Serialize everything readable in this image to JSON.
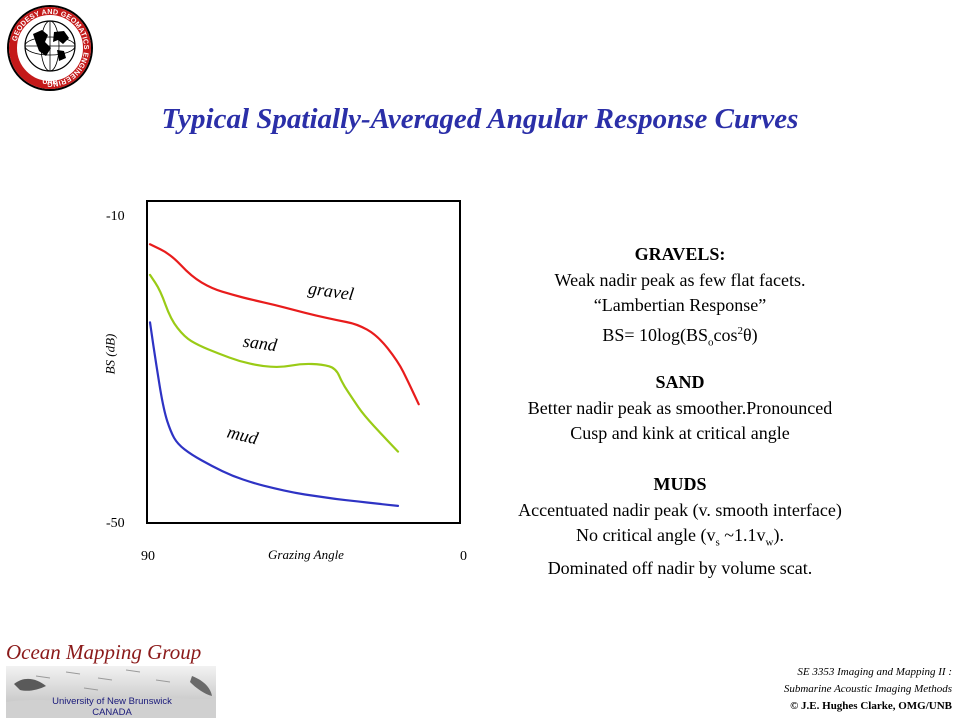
{
  "logo": {
    "text": "GEODESY AND GEOMATICS ENGINEERING",
    "subtext": "UNB"
  },
  "title": "Typical Spatially-Averaged Angular Response Curves",
  "chart_data": {
    "type": "line",
    "xlabel": "Grazing Angle",
    "ylabel": "BS (dB)",
    "xlim": [
      90,
      0
    ],
    "ylim": [
      -50,
      -10
    ],
    "x_tick_labels": [
      "90",
      "0"
    ],
    "y_tick_labels": [
      "-10",
      "-50"
    ],
    "grid": false,
    "series": [
      {
        "name": "gravel",
        "color": "#e81c1c",
        "x": [
          90,
          84,
          78,
          72,
          66,
          60,
          54,
          48,
          42,
          36,
          30,
          24,
          18,
          15,
          12
        ],
        "y": [
          -13.7,
          -15.0,
          -17.9,
          -19.5,
          -20.3,
          -21.0,
          -21.6,
          -22.3,
          -23.0,
          -23.6,
          -24.1,
          -25.6,
          -29.0,
          -31.7,
          -34.6
        ]
      },
      {
        "name": "sand",
        "color": "#9acb16",
        "x": [
          90,
          87,
          84,
          80,
          76,
          70,
          64,
          58,
          52,
          46,
          40,
          36,
          34,
          31,
          28,
          22,
          18
        ],
        "y": [
          -17.7,
          -19.7,
          -23.5,
          -25.8,
          -26.9,
          -28.0,
          -29.0,
          -29.6,
          -29.8,
          -29.3,
          -29.4,
          -29.9,
          -32.0,
          -34.0,
          -36.0,
          -38.9,
          -40.8
        ]
      },
      {
        "name": "mud",
        "color": "#2e33c4",
        "x": [
          90,
          88,
          86,
          84,
          82,
          78,
          72,
          66,
          60,
          54,
          48,
          42,
          36,
          30,
          24,
          18
        ],
        "y": [
          -23.9,
          -30.0,
          -35.4,
          -38.2,
          -39.8,
          -41.2,
          -42.7,
          -44.0,
          -44.9,
          -45.6,
          -46.2,
          -46.6,
          -47.0,
          -47.3,
          -47.6,
          -47.9
        ]
      }
    ],
    "annotations": [
      "gravel",
      "sand",
      "mud"
    ]
  },
  "descriptions": {
    "gravels": {
      "heading": "GRAVELS:",
      "line1": "Weak nadir peak as few flat facets.",
      "line2": "“Lambertian Response”",
      "formula_a": "BS= 10log(BS",
      "formula_sub": "o",
      "formula_b": "cos",
      "formula_sup": "2",
      "formula_c": "θ)"
    },
    "sand": {
      "heading": "SAND",
      "line1": "Better nadir peak as smoother.Pronounced",
      "line2": "Cusp and kink at critical angle"
    },
    "muds": {
      "heading": "MUDS",
      "line1": "Accentuated nadir peak (v. smooth interface)",
      "line2a": "No critical angle (v",
      "line2_sub1": "s",
      "line2b": " ~1.1v",
      "line2_sub2": "w",
      "line2c": ").",
      "line3": "Dominated off nadir by volume scat."
    }
  },
  "footer": {
    "group_name": "Ocean Mapping Group",
    "university": "University of New Brunswick",
    "country": "CANADA",
    "course_line1": "SE 3353 Imaging and Mapping II :",
    "course_line2": "Submarine Acoustic Imaging Methods",
    "copyright": "© J.E. Hughes Clarke, OMG/UNB"
  },
  "colors": {
    "title": "#2b2fa8",
    "gravel": "#e81c1c",
    "sand": "#9acb16",
    "mud": "#2e33c4",
    "omg": "#8b1a1a"
  }
}
